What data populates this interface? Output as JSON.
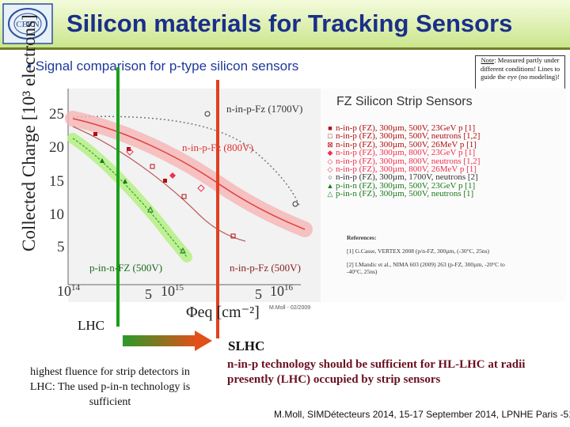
{
  "header": {
    "title": "Silicon materials for Tracking Sensors",
    "logo_text": "CERN"
  },
  "bullet": "Signal comparison for p-type silicon sensors",
  "note": {
    "label": "Note",
    "text": ": Measured partly under different conditions! Lines to guide the eye (no modeling)!"
  },
  "chart": {
    "ylabel": "Collected Charge [10³ electrons]",
    "xlabel": "Φeq [cm⁻²]",
    "yticks": [
      "25",
      "20",
      "15",
      "10",
      "5"
    ],
    "xticks": {
      "t1_base": "10",
      "t1_exp": "14",
      "t2": "5",
      "t3_base": "10",
      "t3_exp": "15",
      "t4": "5",
      "t5_base": "10",
      "t5_exp": "16"
    },
    "curve_labels": {
      "npfz1700": "n-in-p-Fz (1700V)",
      "npfz800": "n-in-p-Fz (800V)",
      "pnfz500": "p-in-n-FZ (500V)",
      "npfz500": "n-in-p-Fz (500V)"
    },
    "credit": "M.Moll - 02/2009"
  },
  "legend": {
    "title": "FZ Silicon Strip Sensors",
    "items": [
      {
        "marker": "■",
        "color": "#b01010",
        "text": "n-in-p (FZ), 300µm, 500V, 23GeV p [1]"
      },
      {
        "marker": "□",
        "color": "#b01010",
        "text": "n-in-p (FZ), 300µm, 500V, neutrons [1,2]"
      },
      {
        "marker": "⊠",
        "color": "#b01010",
        "text": "n-in-p (FZ), 300µm, 500V, 26MeV p [1]"
      },
      {
        "marker": "◆",
        "color": "#f03050",
        "text": "n-in-p (FZ), 300µm, 800V, 23GeV p [1]"
      },
      {
        "marker": "◇",
        "color": "#f03050",
        "text": "n-in-p (FZ), 300µm, 800V, neutrons [1,2]"
      },
      {
        "marker": "◇",
        "color": "#f03050",
        "text": "n-in-p (FZ), 300µm, 800V, 26MeV p [1]"
      },
      {
        "marker": "○",
        "color": "#333333",
        "text": "n-in-p (FZ), 300µm, 1700V, neutrons [2]"
      },
      {
        "marker": "▲",
        "color": "#1a7a1a",
        "text": "p-in-n (FZ), 300µm, 500V, 23GeV p [1]"
      },
      {
        "marker": "△",
        "color": "#1a7a1a",
        "text": "p-in-n (FZ), 300µm, 500V, neutrons [1]"
      }
    ],
    "refs_title": "References:",
    "ref1": "[1] G.Casse, VERTEX 2008 (p/n-FZ, 300µm, (-30°C, 25ns)",
    "ref2": "[2] I.Mandic et al., NIMA 603 (2009) 263 (p-FZ, 300µm, -20°C to -40°C, 25ns)"
  },
  "lhc": {
    "label": "LHC",
    "desc": "highest fluence for strip detectors in LHC: The used p-in-n technology is sufficient"
  },
  "slhc": {
    "label": "SLHC",
    "desc": "n-in-p technology should be sufficient for HL-LHC at radii presently (LHC) occupied by strip sensors"
  },
  "footer": "M.Moll, SIMDétecteurs 2014, 15-17 September 2014, LPNHE Paris -51-"
}
